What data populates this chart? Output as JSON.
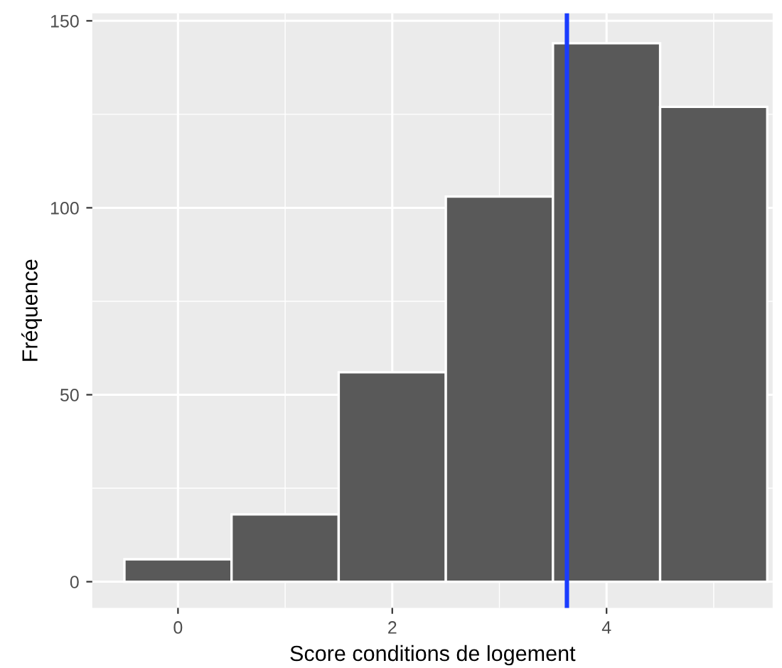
{
  "chart_data": {
    "type": "histogram",
    "xlabel": "Score conditions de logement",
    "ylabel": "Fréquence",
    "bins": [
      -0.5,
      0.5,
      1.5,
      2.5,
      3.5,
      4.5,
      5.5
    ],
    "values": [
      6,
      18,
      56,
      103,
      144,
      127
    ],
    "color": "#595959",
    "xlim": [
      -0.8,
      5.55
    ],
    "ylim": [
      -7,
      152
    ],
    "xticks": [
      0,
      2,
      4
    ],
    "yticks": [
      0,
      50,
      100,
      150
    ],
    "grid": true,
    "ref_lines": [
      {
        "axis": "x",
        "value": 3.63,
        "color": "#1a3cff"
      }
    ]
  }
}
